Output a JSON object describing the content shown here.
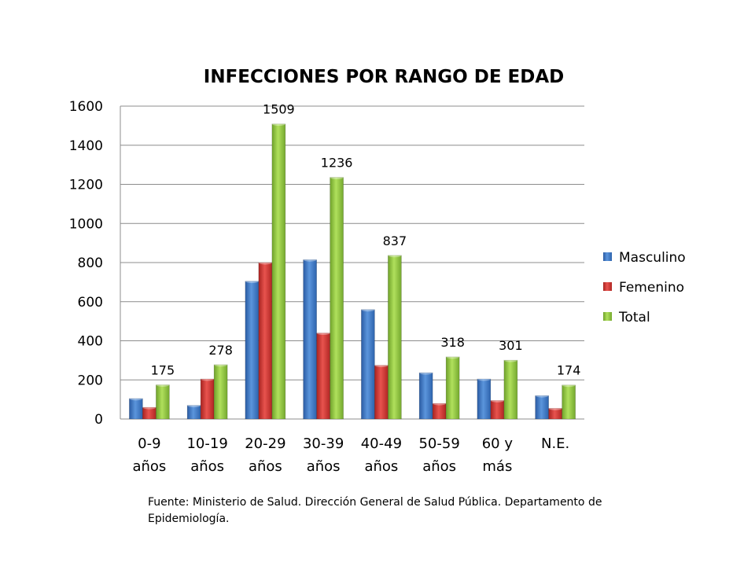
{
  "chart_data": {
    "type": "bar",
    "title": "INFECCIONES POR RANGO DE EDAD",
    "categories": [
      [
        "0-9",
        "años"
      ],
      [
        "10-19",
        "años"
      ],
      [
        "20-29",
        "años"
      ],
      [
        "30-39",
        "años"
      ],
      [
        "40-49",
        "años"
      ],
      [
        "50-59",
        "años"
      ],
      [
        "60 y",
        "más"
      ],
      [
        "N.E."
      ]
    ],
    "series": [
      {
        "name": "Masculino",
        "color": "#3a75c4",
        "values": [
          105,
          70,
          705,
          815,
          560,
          237,
          205,
          120
        ]
      },
      {
        "name": "Femenino",
        "color": "#d2322e",
        "values": [
          60,
          205,
          800,
          440,
          275,
          80,
          95,
          55
        ]
      },
      {
        "name": "Total",
        "color": "#8cc43c",
        "values": [
          175,
          278,
          1509,
          1236,
          837,
          318,
          301,
          174
        ],
        "data_labels": [
          "175",
          "278",
          "1509",
          "1236",
          "837",
          "318",
          "301",
          "174"
        ]
      }
    ],
    "ylim": [
      0,
      1600
    ],
    "yticks": [
      "0",
      "200",
      "400",
      "600",
      "800",
      "1000",
      "1200",
      "1400",
      "1600"
    ],
    "grid": true,
    "legend_position": "right"
  },
  "source_note": "Fuente: Ministerio de Salud. Dirección General de Salud Pública. Departamento de Epidemiología."
}
